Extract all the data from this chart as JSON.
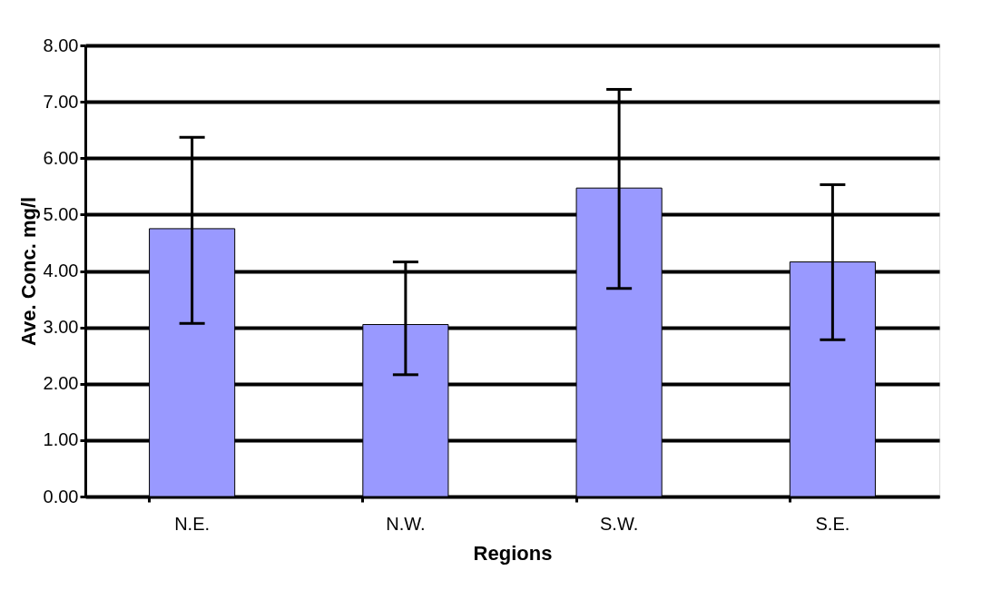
{
  "chart_data": {
    "type": "bar",
    "xlabel": "Regions",
    "ylabel": "Ave. Conc. mg/l",
    "categories": [
      "N.E.",
      "N.W.",
      "S.W.",
      "S.E."
    ],
    "values": [
      4.75,
      3.05,
      5.47,
      4.16
    ],
    "errors": [
      [
        3.07,
        6.37
      ],
      [
        2.16,
        4.16
      ],
      [
        3.69,
        7.22
      ],
      [
        2.78,
        5.53
      ]
    ],
    "color": "#9999ff",
    "ylim": [
      0,
      8
    ],
    "yticks": [
      {
        "value": 0,
        "label": "0.00"
      },
      {
        "value": 1,
        "label": "1.00"
      },
      {
        "value": 2,
        "label": "2.00"
      },
      {
        "value": 3,
        "label": "3.00"
      },
      {
        "value": 4,
        "label": "4.00"
      },
      {
        "value": 5,
        "label": "5.00"
      },
      {
        "value": 6,
        "label": "6.00"
      },
      {
        "value": 7,
        "label": "7.00"
      },
      {
        "value": 8,
        "label": "8.00"
      }
    ],
    "grid": "y"
  }
}
